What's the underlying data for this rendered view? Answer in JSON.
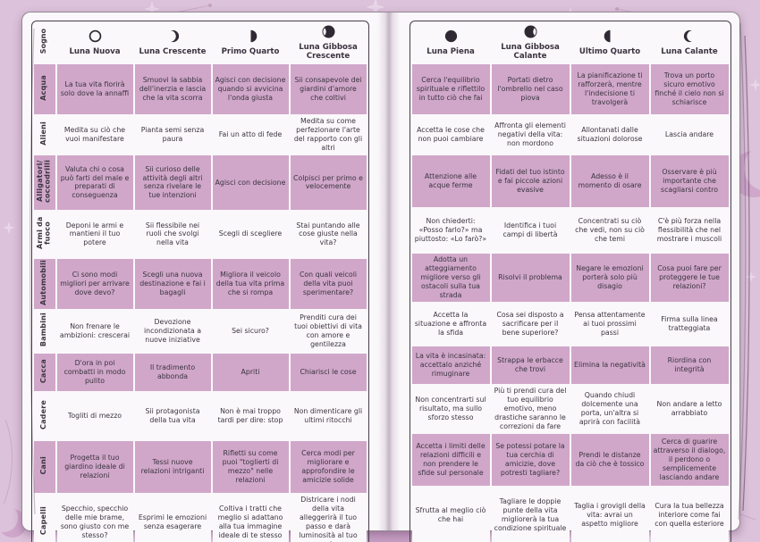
{
  "corner_label": "Sogno",
  "colors": {
    "background": "#dcc2da",
    "page_bg": "#fbf8fb",
    "row_pink": "#d0a7c9",
    "text": "#3a3340",
    "moon": "#2e2933",
    "decor_dark": "#c79fc4",
    "decor_light": "#e9d6e8"
  },
  "columns": [
    {
      "label": "Luna Nuova",
      "icon": "new-moon-icon",
      "phase": "new",
      "page": "left"
    },
    {
      "label": "Luna Crescente",
      "icon": "waxing-crescent-moon-icon",
      "phase": "waxing-crescent",
      "page": "left"
    },
    {
      "label": "Primo Quarto",
      "icon": "first-quarter-moon-icon",
      "phase": "first-quarter",
      "page": "left"
    },
    {
      "label": "Luna Gibbosa Crescente",
      "icon": "waxing-gibbous-moon-icon",
      "phase": "waxing-gibbous",
      "page": "left"
    },
    {
      "label": "Luna Piena",
      "icon": "full-moon-icon",
      "phase": "full",
      "page": "right"
    },
    {
      "label": "Luna Gibbosa Calante",
      "icon": "waning-gibbous-moon-icon",
      "phase": "waning-gibbous",
      "page": "right"
    },
    {
      "label": "Ultimo Quarto",
      "icon": "last-quarter-moon-icon",
      "phase": "last-quarter",
      "page": "right"
    },
    {
      "label": "Luna Calante",
      "icon": "waning-crescent-moon-icon",
      "phase": "waning-crescent",
      "page": "right"
    }
  ],
  "rows": [
    {
      "label": "Acqua",
      "left": [
        "La tua vita fiorirà solo dove la annaffi",
        "Smuovi la sabbia dell'inerzia e lascia che la vita scorra",
        "Agisci con decisione quando si avvicina l'onda giusta",
        "Sii consapevole dei giardini d'amore che coltivi"
      ],
      "right": [
        "Cerca l'equilibrio spirituale e riflettilo in tutto ciò che fai",
        "Portati dietro l'ombrello nel caso piova",
        "La pianificazione ti rafforzerà, mentre l'indecisione ti travolgerà",
        "Trova un porto sicuro emotivo finché il cielo non si schiarisce"
      ]
    },
    {
      "label": "Alieni",
      "left": [
        "Medita su ciò che vuoi manifestare",
        "Pianta semi senza paura",
        "Fai un atto di fede",
        "Medita su come perfezionare l'arte del rapporto con gli altri"
      ],
      "right": [
        "Accetta le cose che non puoi cambiare",
        "Affronta gli elementi negativi della vita: non mordono",
        "Allontanati dalle situazioni dolorose",
        "Lascia andare"
      ]
    },
    {
      "label": "Alligatori/ coccodrilli",
      "left": [
        "Valuta chi o cosa può farti del male e preparati di conseguenza",
        "Sii curioso delle attività degli altri senza rivelare le tue intenzioni",
        "Agisci con decisione",
        "Colpisci per primo e velocemente"
      ],
      "right": [
        "Attenzione alle acque ferme",
        "Fidati del tuo istinto e fai piccole azioni evasive",
        "Adesso è il momento di osare",
        "Osservare è più importante che scagliarsi contro"
      ]
    },
    {
      "label": "Armi da fuoco",
      "left": [
        "Deponi le armi e mantieni il tuo potere",
        "Sii flessibile nei ruoli che svolgi nella vita",
        "Scegli di scegliere",
        "Stai puntando alle cose giuste nella vita?"
      ],
      "right": [
        "Non chiederti: «Posso farlo?» ma piuttosto: «Lo farò?»",
        "Identifica i tuoi campi di libertà",
        "Concentrati su ciò che vedi, non su ciò che temi",
        "C'è più forza nella flessibilità che nel mostrare i muscoli"
      ]
    },
    {
      "label": "Automobili",
      "left": [
        "Ci sono modi migliori per arrivare dove devo?",
        "Scegli una nuova destinazione e fai i bagagli",
        "Migliora il veicolo della tua vita prima che si rompa",
        "Con quali veicoli della vita puoi sperimentare?"
      ],
      "right": [
        "Adotta un atteggiamento migliore verso gli ostacoli sulla tua strada",
        "Risolvi il problema",
        "Negare le emozioni porterà solo più disagio",
        "Cosa puoi fare per proteggere le tue relazioni?"
      ]
    },
    {
      "label": "Bambini",
      "left": [
        "Non frenare le ambizioni: crescerai",
        "Devozione incondizionata a nuove iniziative",
        "Sei sicuro?",
        "Prenditi cura dei tuoi obiettivi di vita con amore e gentilezza"
      ],
      "right": [
        "Accetta la situazione e affronta la sfida",
        "Cosa sei disposto a sacrificare per il bene superiore?",
        "Pensa attentamente ai tuoi prossimi passi",
        "Firma sulla linea tratteggiata"
      ]
    },
    {
      "label": "Cacca",
      "left": [
        "D'ora in poi combatti in modo pulito",
        "Il tradimento abbonda",
        "Apriti",
        "Chiarisci le cose"
      ],
      "right": [
        "La vita è incasinata: accettalo anziché rimuginare",
        "Strappa le erbacce che trovi",
        "Elimina la negatività",
        "Riordina con integrità"
      ]
    },
    {
      "label": "Cadere",
      "left": [
        "Togliti di mezzo",
        "Sii protagonista della tua vita",
        "Non è mai troppo tardi per dire: stop",
        "Non dimenticare gli ultimi ritocchi"
      ],
      "right": [
        "Non concentrarti sul risultato, ma sullo sforzo stesso",
        "Più ti prendi cura del tuo equilibrio emotivo, meno drastiche saranno le correzioni da fare",
        "Quando chiudi dolcemente una porta, un'altra si aprirà con facilità",
        "Non andare a letto arrabbiato"
      ]
    },
    {
      "label": "Cani",
      "left": [
        "Progetta il tuo giardino ideale di relazioni",
        "Tessi nuove relazioni intriganti",
        "Rifletti su come puoi \"toglierti di mezzo\" nelle relazioni",
        "Cerca modi per migliorare e approfondire le amicizie solide"
      ],
      "right": [
        "Accetta i limiti delle relazioni difficili e non prendere le sfide sul personale",
        "Se potessi potare la tua cerchia di amicizie, dove potresti tagliare?",
        "Prendi le distanze da ciò che è tossico",
        "Cerca di guarire attraverso il dialogo, il perdono o semplicemente lasciando andare"
      ]
    },
    {
      "label": "Capelli",
      "left": [
        "Specchio, specchio delle mie brame, sono giusto con me stesso?",
        "Esprimi le emozioni senza esagerare",
        "Coltiva i tratti che meglio si adattano alla tua immagine ideale di te stesso",
        "Districare i nodi della vita alleggerirà il tuo passo e darà luminosità al tuo sorriso"
      ],
      "right": [
        "Sfrutta al meglio ciò che hai",
        "Tagliare le doppie punte della vita migliorerà la tua condizione spirituale",
        "Taglia i grovigli della vita: avrai un aspetto migliore",
        "Cura la tua bellezza interiore come fai con quella esteriore"
      ]
    }
  ]
}
